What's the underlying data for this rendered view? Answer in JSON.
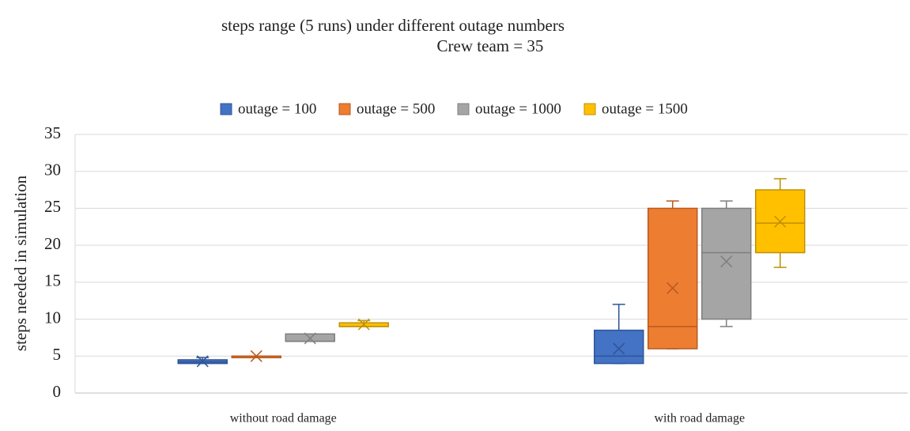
{
  "chart_data": {
    "type": "box",
    "title": "steps range (5 runs) under different outage numbers",
    "subtitle": "Crew team = 35",
    "y_label": "steps needed in simulation",
    "categories": [
      "without road damage",
      "with road damage"
    ],
    "ylim": [
      0,
      35
    ],
    "yticks": [
      0,
      5,
      10,
      15,
      20,
      25,
      30,
      35
    ],
    "grid": true,
    "legend": "top",
    "series": [
      {
        "name": "outage = 100",
        "color": "#4472c4",
        "edge": "#2f5597",
        "min": [
          4,
          4
        ],
        "q1": [
          4,
          4
        ],
        "median": [
          4.2,
          5
        ],
        "q3": [
          4.5,
          8.5
        ],
        "max": [
          4.8,
          12
        ],
        "mean": [
          4.3,
          6
        ]
      },
      {
        "name": "outage = 500",
        "color": "#ed7d31",
        "edge": "#b85a1f",
        "min": [
          5,
          6
        ],
        "q1": [
          5,
          6
        ],
        "median": [
          5,
          9
        ],
        "q3": [
          5,
          25
        ],
        "max": [
          5,
          26
        ],
        "mean": [
          5,
          14.2
        ]
      },
      {
        "name": "outage = 1000",
        "color": "#a5a5a5",
        "edge": "#7f7f7f",
        "min": [
          7,
          9
        ],
        "q1": [
          7,
          10
        ],
        "median": [
          7,
          19
        ],
        "q3": [
          8,
          25
        ],
        "max": [
          8,
          26
        ],
        "mean": [
          7.4,
          17.8
        ]
      },
      {
        "name": "outage = 1500",
        "color": "#ffc000",
        "edge": "#c09000",
        "min": [
          9,
          17
        ],
        "q1": [
          9,
          19
        ],
        "median": [
          9,
          23
        ],
        "q3": [
          9.5,
          27.5
        ],
        "max": [
          9.8,
          29
        ],
        "mean": [
          9.3,
          23.2
        ]
      }
    ]
  }
}
